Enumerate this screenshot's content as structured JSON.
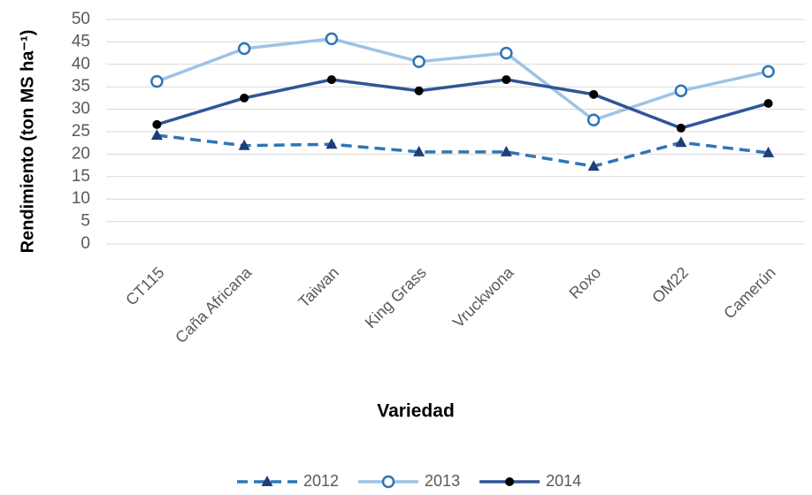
{
  "chart_data": {
    "type": "line",
    "xlabel": "Variedad",
    "ylabel": "Rendimiento (ton MS ha⁻¹)",
    "categories": [
      "CT115",
      "Caña Africana",
      "Taiwan",
      "King Grass",
      "Vruckwona",
      "Roxo",
      "OM22",
      "Camerún"
    ],
    "series": [
      {
        "name": "2012",
        "color": "#2e75b6",
        "dashed": true,
        "marker": "triangle",
        "marker_color": "#1f3d7a",
        "values": [
          24.2,
          21.9,
          22.2,
          20.5,
          20.5,
          17.3,
          22.6,
          20.3
        ]
      },
      {
        "name": "2013",
        "color": "#9dc3e6",
        "dashed": false,
        "marker": "circle-open",
        "marker_color": "#2e75b6",
        "values": [
          36.2,
          43.5,
          45.7,
          40.6,
          42.5,
          27.6,
          34.1,
          38.4
        ]
      },
      {
        "name": "2014",
        "color": "#2f5597",
        "dashed": false,
        "marker": "dot",
        "marker_color": "#000000",
        "values": [
          26.6,
          32.5,
          36.6,
          34.1,
          36.6,
          33.3,
          25.8,
          31.3
        ]
      }
    ],
    "ylim": [
      0,
      50
    ],
    "yticks": [
      0,
      5,
      10,
      15,
      20,
      25,
      30,
      35,
      40,
      45,
      50
    ],
    "grid": true,
    "legend": "bottom"
  }
}
